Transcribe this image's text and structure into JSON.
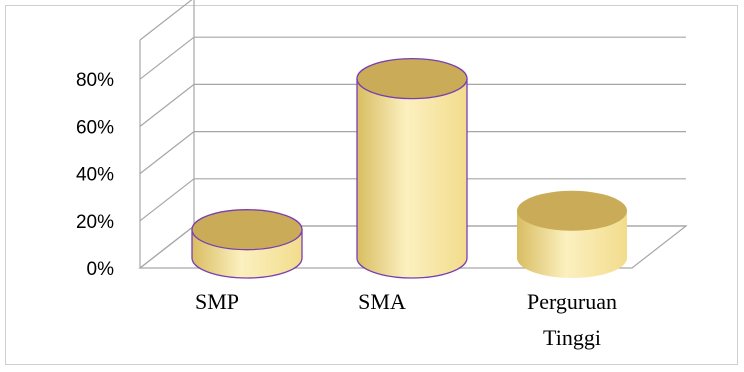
{
  "chart_data": {
    "type": "bar",
    "style": "3d-cylinder",
    "categories": [
      "SMP",
      "SMA",
      "Perguruan Tinggi"
    ],
    "category_lines": [
      [
        "SMP"
      ],
      [
        "SMA"
      ],
      [
        "Perguruan",
        "Tinggi"
      ]
    ],
    "values": [
      0.12,
      0.76,
      0.2
    ],
    "ylim": [
      0,
      0.8
    ],
    "yticks": [
      {
        "value": 0,
        "label": "0%"
      },
      {
        "value": 0.2,
        "label": "20%"
      },
      {
        "value": 0.4,
        "label": "40%"
      },
      {
        "value": 0.6,
        "label": "60%"
      },
      {
        "value": 0.8,
        "label": "80%"
      }
    ],
    "title": "",
    "xlabel": "",
    "ylabel": "",
    "grid": true,
    "legend": "none",
    "colors": {
      "body": "#f2dc8c",
      "body_light": "#fbf0bf",
      "body_dark": "#d9bd62",
      "top": "#c9ab58",
      "outline_highlight": "#7a3fb0",
      "grid": "#a6a6a6"
    }
  }
}
